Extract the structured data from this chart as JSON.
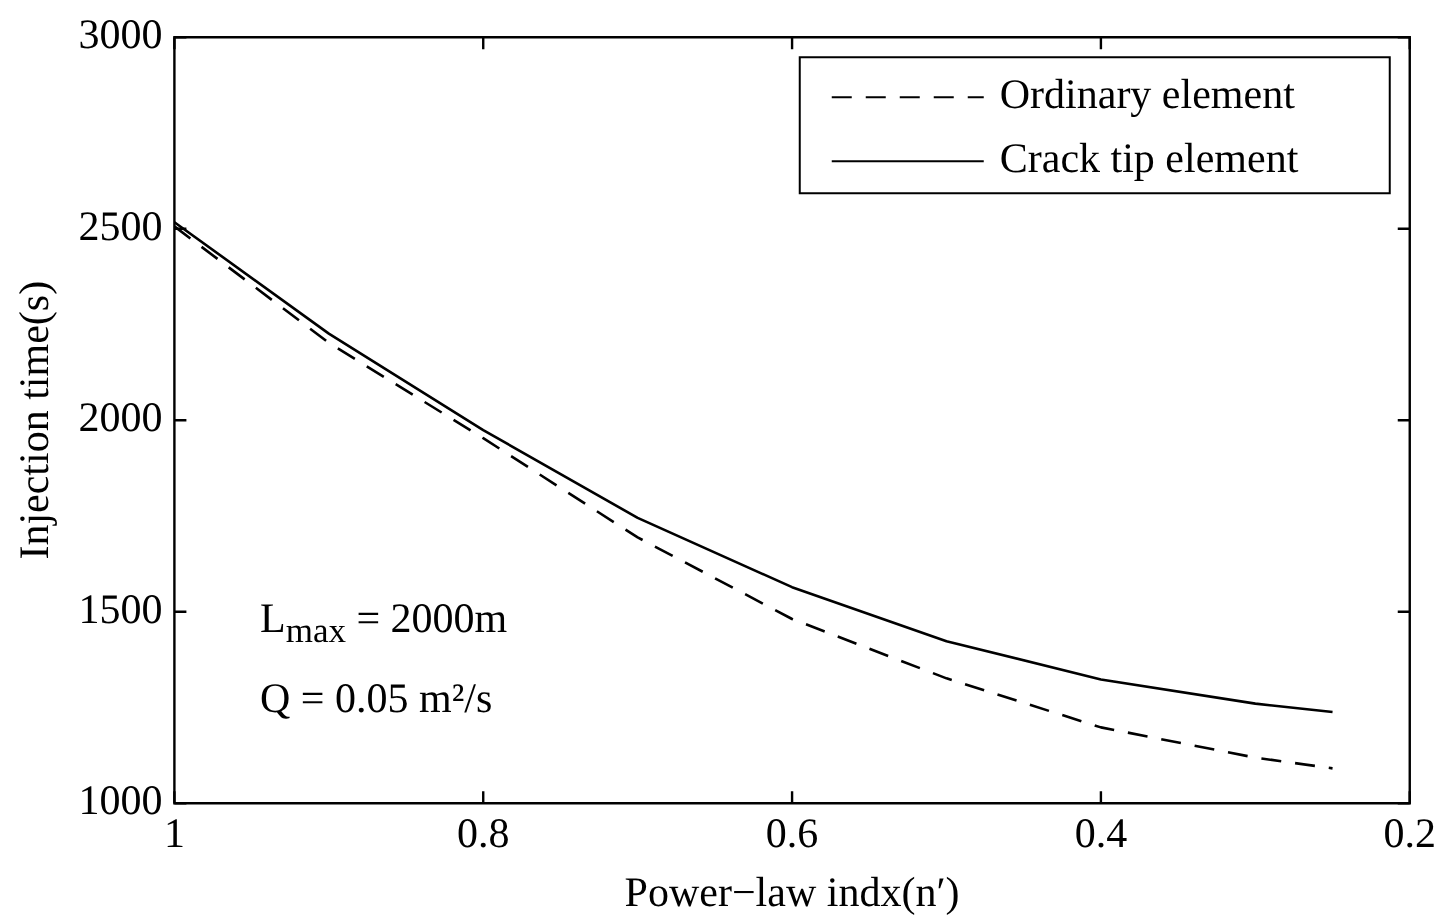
{
  "chart_data": {
    "type": "line",
    "xlabel": "Power−law indx(n′)",
    "ylabel": "Injection time(s)",
    "x": [
      1,
      0.9,
      0.8,
      0.7,
      0.6,
      0.5,
      0.4,
      0.3,
      0.25
    ],
    "series": [
      {
        "name": "Ordinary element",
        "color": "#000000",
        "line_style": "dashed",
        "values": [
          2506,
          2202,
          1953,
          1694,
          1481,
          1326,
          1198,
          1119,
          1091
        ]
      },
      {
        "name": "Crack tip element",
        "color": "#000000",
        "line_style": "solid",
        "values": [
          2517,
          2226,
          1974,
          1745,
          1564,
          1423,
          1323,
          1260,
          1238
        ]
      }
    ],
    "xlim": [
      1,
      0.2
    ],
    "xticks": [
      1,
      0.8,
      0.6,
      0.4,
      0.2
    ],
    "ylim": [
      1000,
      3000
    ],
    "yticks": [
      1000,
      1500,
      2000,
      2500,
      3000
    ],
    "grid": false,
    "legend": "top right",
    "marker": "none",
    "annotations": [
      "L$_{max}$ = 2000m",
      "Q = 0.05 m²/s"
    ]
  }
}
